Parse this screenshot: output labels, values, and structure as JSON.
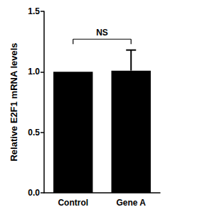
{
  "chart_data": {
    "type": "bar",
    "categories": [
      "Control",
      "Gene A"
    ],
    "values": [
      1.0,
      1.01
    ],
    "errors": [
      null,
      0.17
    ],
    "color": "#000000",
    "y_label": "Relative E2F1 mRNA levels",
    "ylim": [
      0,
      1.5
    ],
    "yticks": [
      {
        "value": 0,
        "label": "0.0"
      },
      0.5,
      {
        "value": 1,
        "label": "1.0"
      },
      1.5
    ],
    "grid": false,
    "annotations": [
      {
        "text": "NS",
        "from": "Control",
        "to": "Gene A",
        "y": 1.27
      }
    ]
  }
}
